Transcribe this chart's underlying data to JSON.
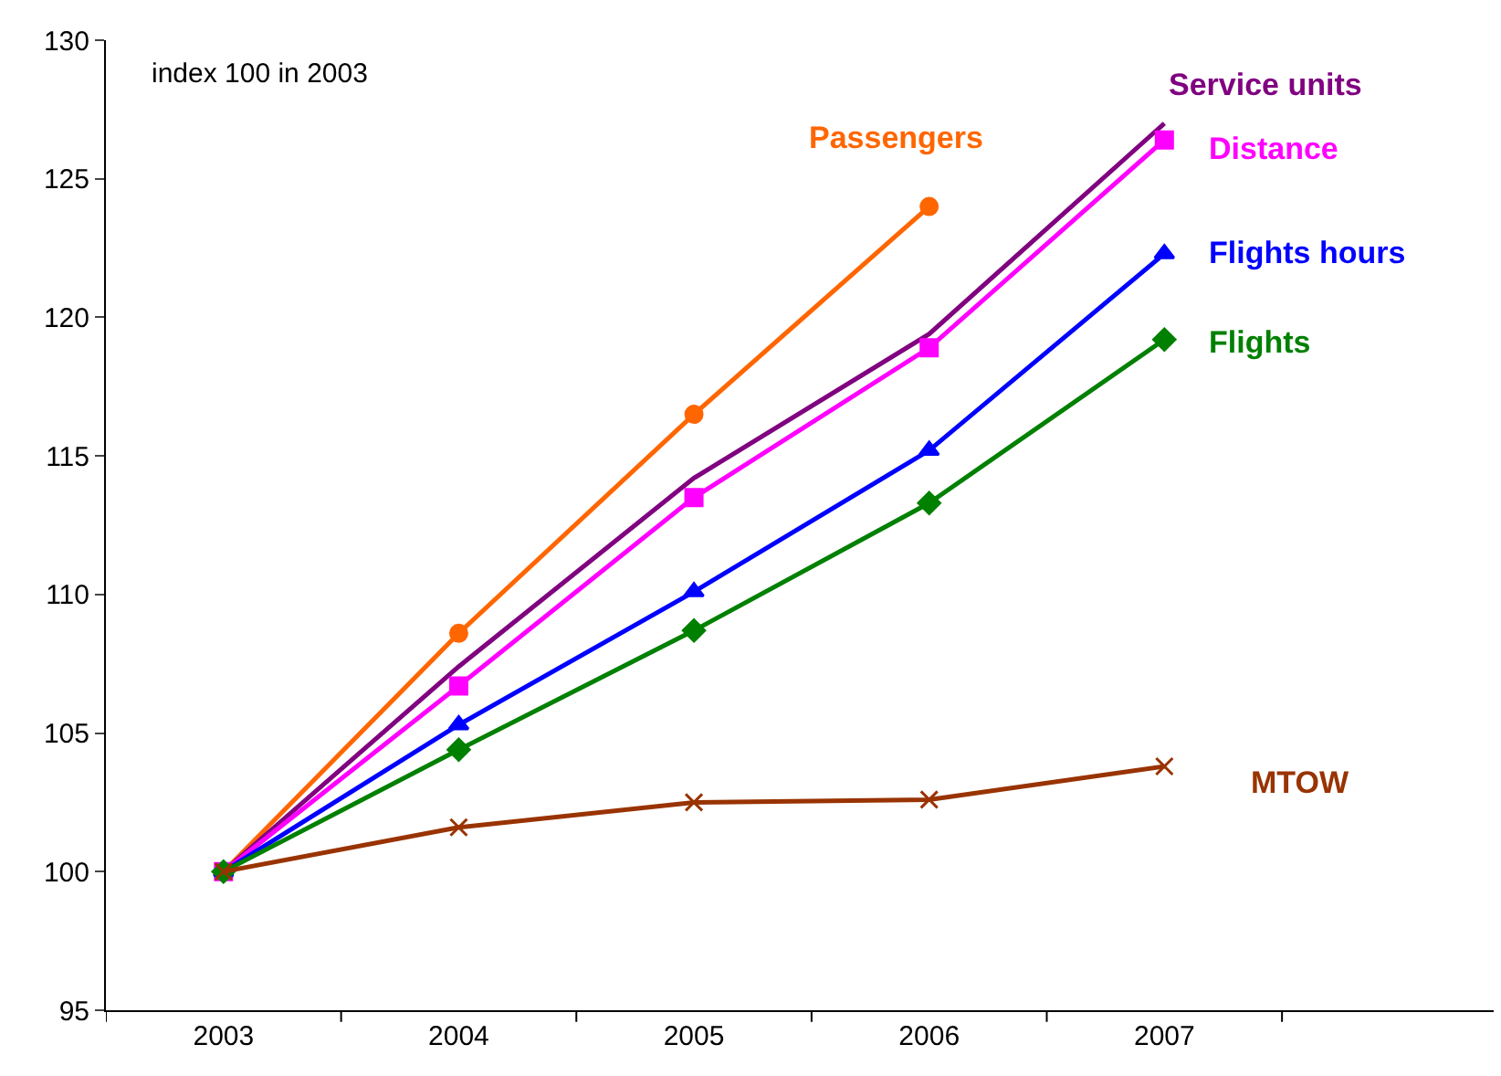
{
  "chart_data": {
    "type": "line",
    "categories": [
      "2003",
      "2004",
      "2005",
      "2006",
      "2007"
    ],
    "series": [
      {
        "name": "Passengers",
        "color": "#ff6600",
        "marker": "circle",
        "values": [
          100,
          108.6,
          116.5,
          124.0,
          null
        ]
      },
      {
        "name": "Service units",
        "color": "#800080",
        "marker": "none",
        "values": [
          100,
          107.4,
          114.2,
          119.4,
          127.0
        ]
      },
      {
        "name": "Distance",
        "color": "#ff00ff",
        "marker": "square",
        "values": [
          100,
          106.7,
          113.5,
          118.9,
          126.4
        ]
      },
      {
        "name": "Flights hours",
        "color": "#0000ff",
        "marker": "triangle",
        "values": [
          100,
          105.3,
          110.1,
          115.2,
          122.3
        ]
      },
      {
        "name": "Flights",
        "color": "#008000",
        "marker": "diamond",
        "values": [
          100,
          104.4,
          108.7,
          113.3,
          119.2
        ]
      },
      {
        "name": "MTOW",
        "color": "#993300",
        "marker": "cross",
        "values": [
          100,
          101.6,
          102.5,
          102.6,
          103.8
        ]
      }
    ],
    "annotations": [
      "index 100 in 2003"
    ],
    "ylim": [
      95,
      130
    ],
    "yticks": [
      95,
      100,
      105,
      110,
      115,
      120,
      125,
      130
    ],
    "grid": false,
    "legend": false
  }
}
